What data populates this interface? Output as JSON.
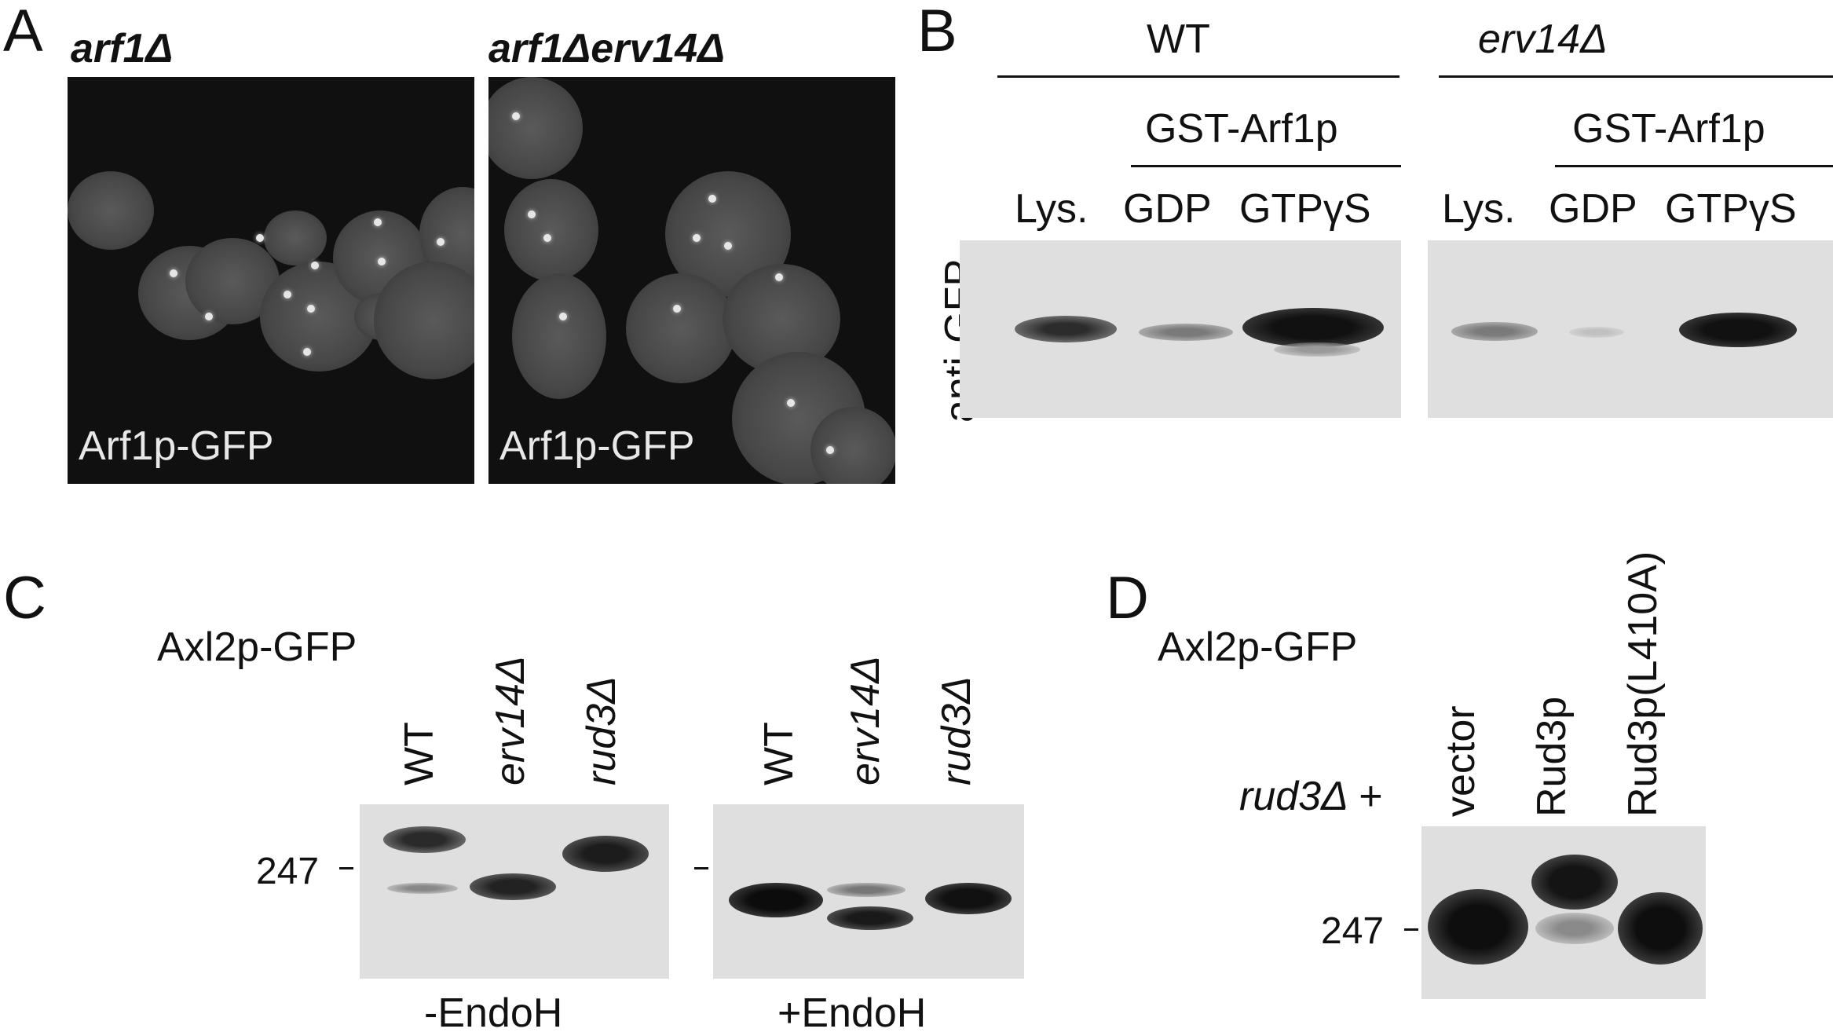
{
  "panelA": {
    "letter": "A",
    "left_title": "arf1Δ",
    "right_title": "arf1Δerv14Δ",
    "left_caption": "Arf1p-GFP",
    "right_caption": "Arf1p-GFP"
  },
  "panelB": {
    "letter": "B",
    "group_wt": "WT",
    "group_erv": "erv14Δ",
    "gst_wt": "GST-Arf1p",
    "gst_erv": "GST-Arf1p",
    "lanes_wt": [
      "Lys.",
      "GDP",
      "GTPγS"
    ],
    "lanes_erv": [
      "Lys.",
      "GDP",
      "GTPγS"
    ],
    "ylabel": "anti-GFP"
  },
  "panelC": {
    "letter": "C",
    "title": "Axl2p-GFP",
    "lanes_left": [
      "WT",
      "erv14Δ",
      "rud3Δ"
    ],
    "lanes_right": [
      "WT",
      "erv14Δ",
      "rud3Δ"
    ],
    "marker": "247",
    "caption_left": "-EndoH",
    "caption_right": "+EndoH"
  },
  "panelD": {
    "letter": "D",
    "title": "Axl2p-GFP",
    "row_label": "rud3Δ +",
    "lanes": [
      "vector",
      "Rud3p",
      "Rud3p(L410A)"
    ],
    "marker": "247"
  }
}
